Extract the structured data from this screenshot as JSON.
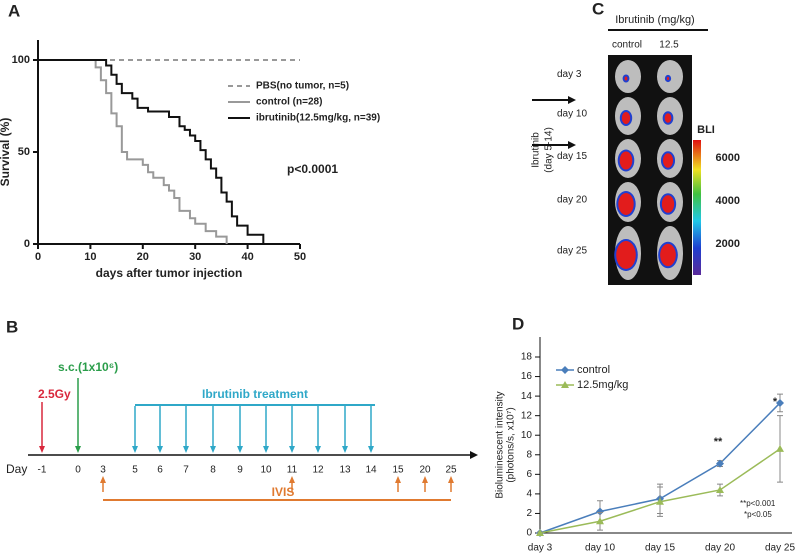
{
  "panel_labels": [
    "A",
    "B",
    "C",
    "D"
  ],
  "chart_data": [
    {
      "type": "step",
      "ylabel": "Survival (%)",
      "xlabel": "days after tumor injection",
      "xlim": [
        0,
        50
      ],
      "xticks": [
        0,
        10,
        20,
        30,
        40,
        50
      ],
      "ylim": [
        0,
        100
      ],
      "yticks": [
        0,
        50,
        100
      ],
      "annotation": "p<0.0001",
      "series": [
        {
          "name": "PBS(no tumor, n=5)",
          "color": "#999999",
          "linestyle": "dashed",
          "x": [
            0,
            50
          ],
          "values": [
            100,
            100
          ]
        },
        {
          "name": "control (n=28)",
          "color": "#999999",
          "linestyle": "solid",
          "x": [
            0,
            11,
            12,
            13,
            14,
            15,
            16,
            17,
            20,
            21,
            22,
            24,
            25,
            26,
            27,
            29,
            30,
            32,
            34,
            36
          ],
          "values": [
            100,
            96,
            89,
            82,
            71,
            64,
            50,
            46,
            43,
            39,
            36,
            32,
            29,
            25,
            18,
            14,
            11,
            7,
            4,
            0
          ]
        },
        {
          "name": "ibrutinib(12.5mg/kg, n=39)",
          "color": "#111111",
          "linestyle": "solid",
          "x": [
            0,
            13,
            14,
            15,
            16,
            18,
            19,
            21,
            25,
            27,
            28,
            29,
            30,
            31,
            32,
            33,
            34,
            35,
            36,
            37,
            38,
            40,
            43
          ],
          "values": [
            100,
            97,
            92,
            87,
            82,
            79,
            74,
            72,
            69,
            64,
            62,
            59,
            56,
            51,
            46,
            41,
            36,
            28,
            23,
            15,
            10,
            5,
            0
          ]
        }
      ]
    },
    {
      "type": "line",
      "ylabel": [
        "Bioluminescent intensity",
        "(photons/s, x10⁷)"
      ],
      "categories": [
        "day 3",
        "day 10",
        "day 15",
        "day 20",
        "day 25"
      ],
      "ylim": [
        0,
        18
      ],
      "yticks": [
        0,
        2,
        4,
        6,
        8,
        10,
        12,
        14,
        16,
        18
      ],
      "annotations": [
        "**",
        "*"
      ],
      "footnotes": [
        "**p<0.001",
        "*p<0.05"
      ],
      "series": [
        {
          "name": "control",
          "color": "#4a7ebb",
          "marker": "diamond",
          "values": [
            0,
            2.2,
            3.5,
            7.1,
            13.3
          ],
          "errors": [
            0.1,
            1.1,
            1.5,
            0.3,
            0.9
          ]
        },
        {
          "name": "12.5mg/kg",
          "color": "#9bbb59",
          "marker": "triangle",
          "values": [
            0,
            1.2,
            3.2,
            4.4,
            8.6
          ],
          "errors": [
            0.1,
            0.9,
            1.5,
            0.6,
            3.4
          ]
        }
      ]
    }
  ],
  "timeline": {
    "label": "Day",
    "days": [
      "-1",
      "0",
      "3",
      "5",
      "6",
      "7",
      "8",
      "9",
      "10",
      "11",
      "12",
      "13",
      "14",
      "15",
      "20",
      "25"
    ],
    "irradiation": "2.5Gy",
    "injection": "s.c.(1x10⁶)",
    "treatment": "Ibrutinib treatment",
    "imaging": "IVIS"
  },
  "imaging_panel": {
    "header": "Ibrutinib  (mg/kg)",
    "columns": [
      "control",
      "12.5"
    ],
    "rows": [
      "day 3",
      "day 10",
      "day 15",
      "day 20",
      "day 25"
    ],
    "side_label": "Ibrutinib",
    "side_sublabel": "(day 5-14)",
    "colorbar_label": "BLI",
    "colorbar_ticks": [
      "2000",
      "4000",
      "6000"
    ]
  }
}
